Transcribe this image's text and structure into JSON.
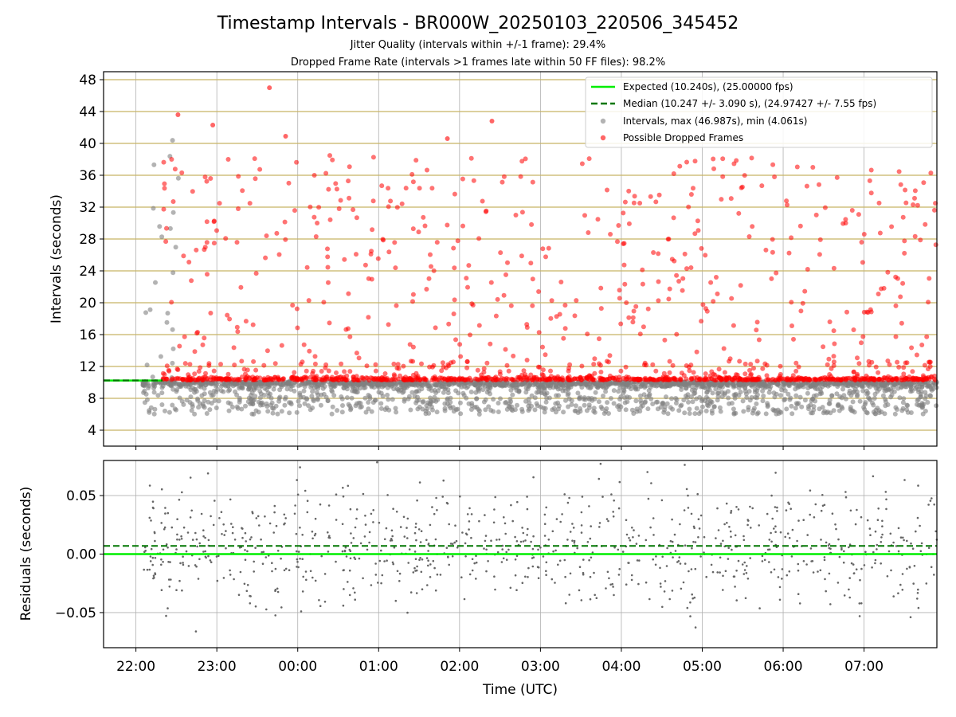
{
  "title": "Timestamp Intervals - BR000W_20250103_220506_345452",
  "subtitle_1": "Jitter Quality (intervals within +/-1 frame): 29.4%",
  "subtitle_2": "Dropped Frame Rate (intervals >1 frames late within 50 FF files): 98.2%",
  "colors": {
    "expected": "#00ee00",
    "median": "#007700",
    "intervals": "#808080",
    "dropped": "#ff0000",
    "grid_top": "#c8b464",
    "grid_bottom": "#b0b0b0"
  },
  "legend": {
    "expected": "Expected (10.240s), (25.00000 fps)",
    "median": "Median (10.247 +/- 3.090 s), (24.97427 +/- 7.55 fps)",
    "intervals": "Intervals, max (46.987s), min (4.061s)",
    "dropped": "Possible Dropped Frames",
    "placement": "top-right"
  },
  "chart_data": [
    {
      "type": "scatter",
      "panel": "intervals",
      "ylabel": "Intervals (seconds)",
      "xlim_hours": [
        21.6,
        31.9
      ],
      "ylim": [
        2,
        49
      ],
      "yticks": [
        4,
        8,
        12,
        16,
        20,
        24,
        28,
        32,
        36,
        40,
        44,
        48
      ],
      "expected": 10.24,
      "median": 10.247,
      "x_start_hour": 22.085,
      "x_end_hour": 31.9,
      "series": [
        {
          "name": "Intervals, max (46.987s), min (4.061s)",
          "n_points": 2200,
          "min": 4.061,
          "max": 46.987
        },
        {
          "name": "Possible Dropped Frames",
          "n_points": 1400,
          "threshold": 10.28
        }
      ]
    },
    {
      "type": "scatter",
      "panel": "residuals",
      "xlabel": "Time (UTC)",
      "ylabel": "Residuals (seconds)",
      "ylim": [
        -0.08,
        0.08
      ],
      "yticks": [
        -0.05,
        0.0,
        0.05
      ],
      "yticklabels": [
        "−0.05",
        "0.00",
        "0.05"
      ],
      "expected": 0.0,
      "median": 0.007,
      "n_points": 900,
      "xticks_hours": [
        22,
        23,
        24,
        25,
        26,
        27,
        28,
        29,
        30,
        31
      ],
      "xticklabels": [
        "22:00",
        "23:00",
        "00:00",
        "01:00",
        "02:00",
        "03:00",
        "04:00",
        "05:00",
        "06:00",
        "07:00"
      ]
    }
  ]
}
